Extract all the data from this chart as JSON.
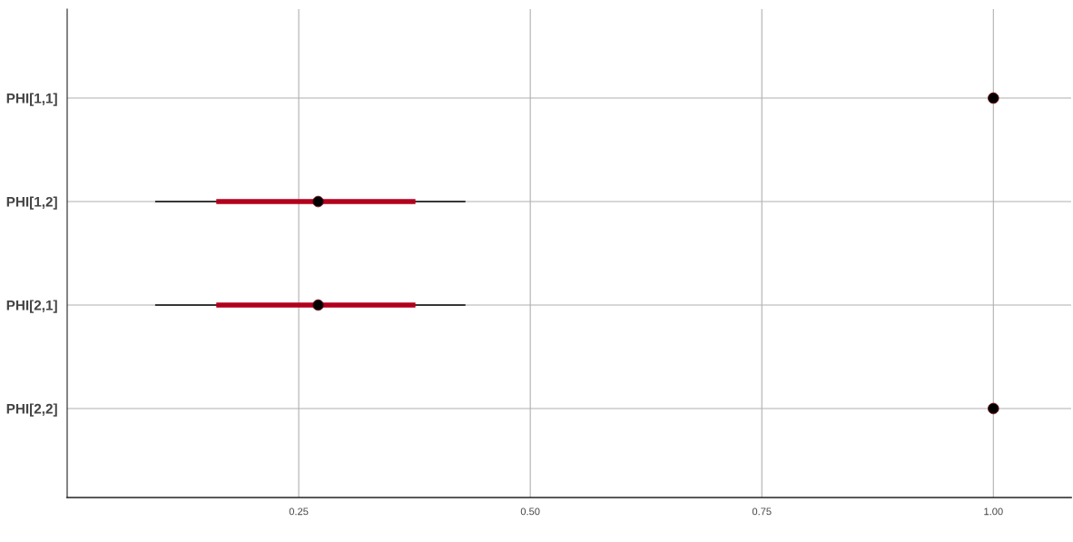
{
  "chart_data": {
    "type": "bar",
    "orientation": "horizontal",
    "categories": [
      "PHI[1,1]",
      "PHI[1,2]",
      "PHI[2,1]",
      "PHI[2,2]"
    ],
    "series": [
      {
        "color": "#000000",
        "base": [
          null,
          0.095,
          0.095,
          null
        ],
        "values": [
          null,
          0.335,
          0.335,
          null
        ]
      },
      {
        "color": "#b2001d",
        "base": [
          null,
          0.161,
          0.161,
          null
        ],
        "values": [
          null,
          0.215,
          0.215,
          null
        ]
      },
      {
        "type": "scatter",
        "color": "#000000",
        "marker": "circle",
        "values": [
          1.0,
          0.271,
          0.271,
          1.0
        ]
      }
    ],
    "xlim": [
      0.0,
      1.084
    ],
    "xticks": [
      {
        "value": 0.25,
        "label": "0.25"
      },
      {
        "value": 0.5,
        "label": "0.50"
      },
      {
        "value": 0.75,
        "label": "0.75"
      },
      {
        "value": 1.0,
        "label": "1.00"
      }
    ],
    "grid": true
  }
}
